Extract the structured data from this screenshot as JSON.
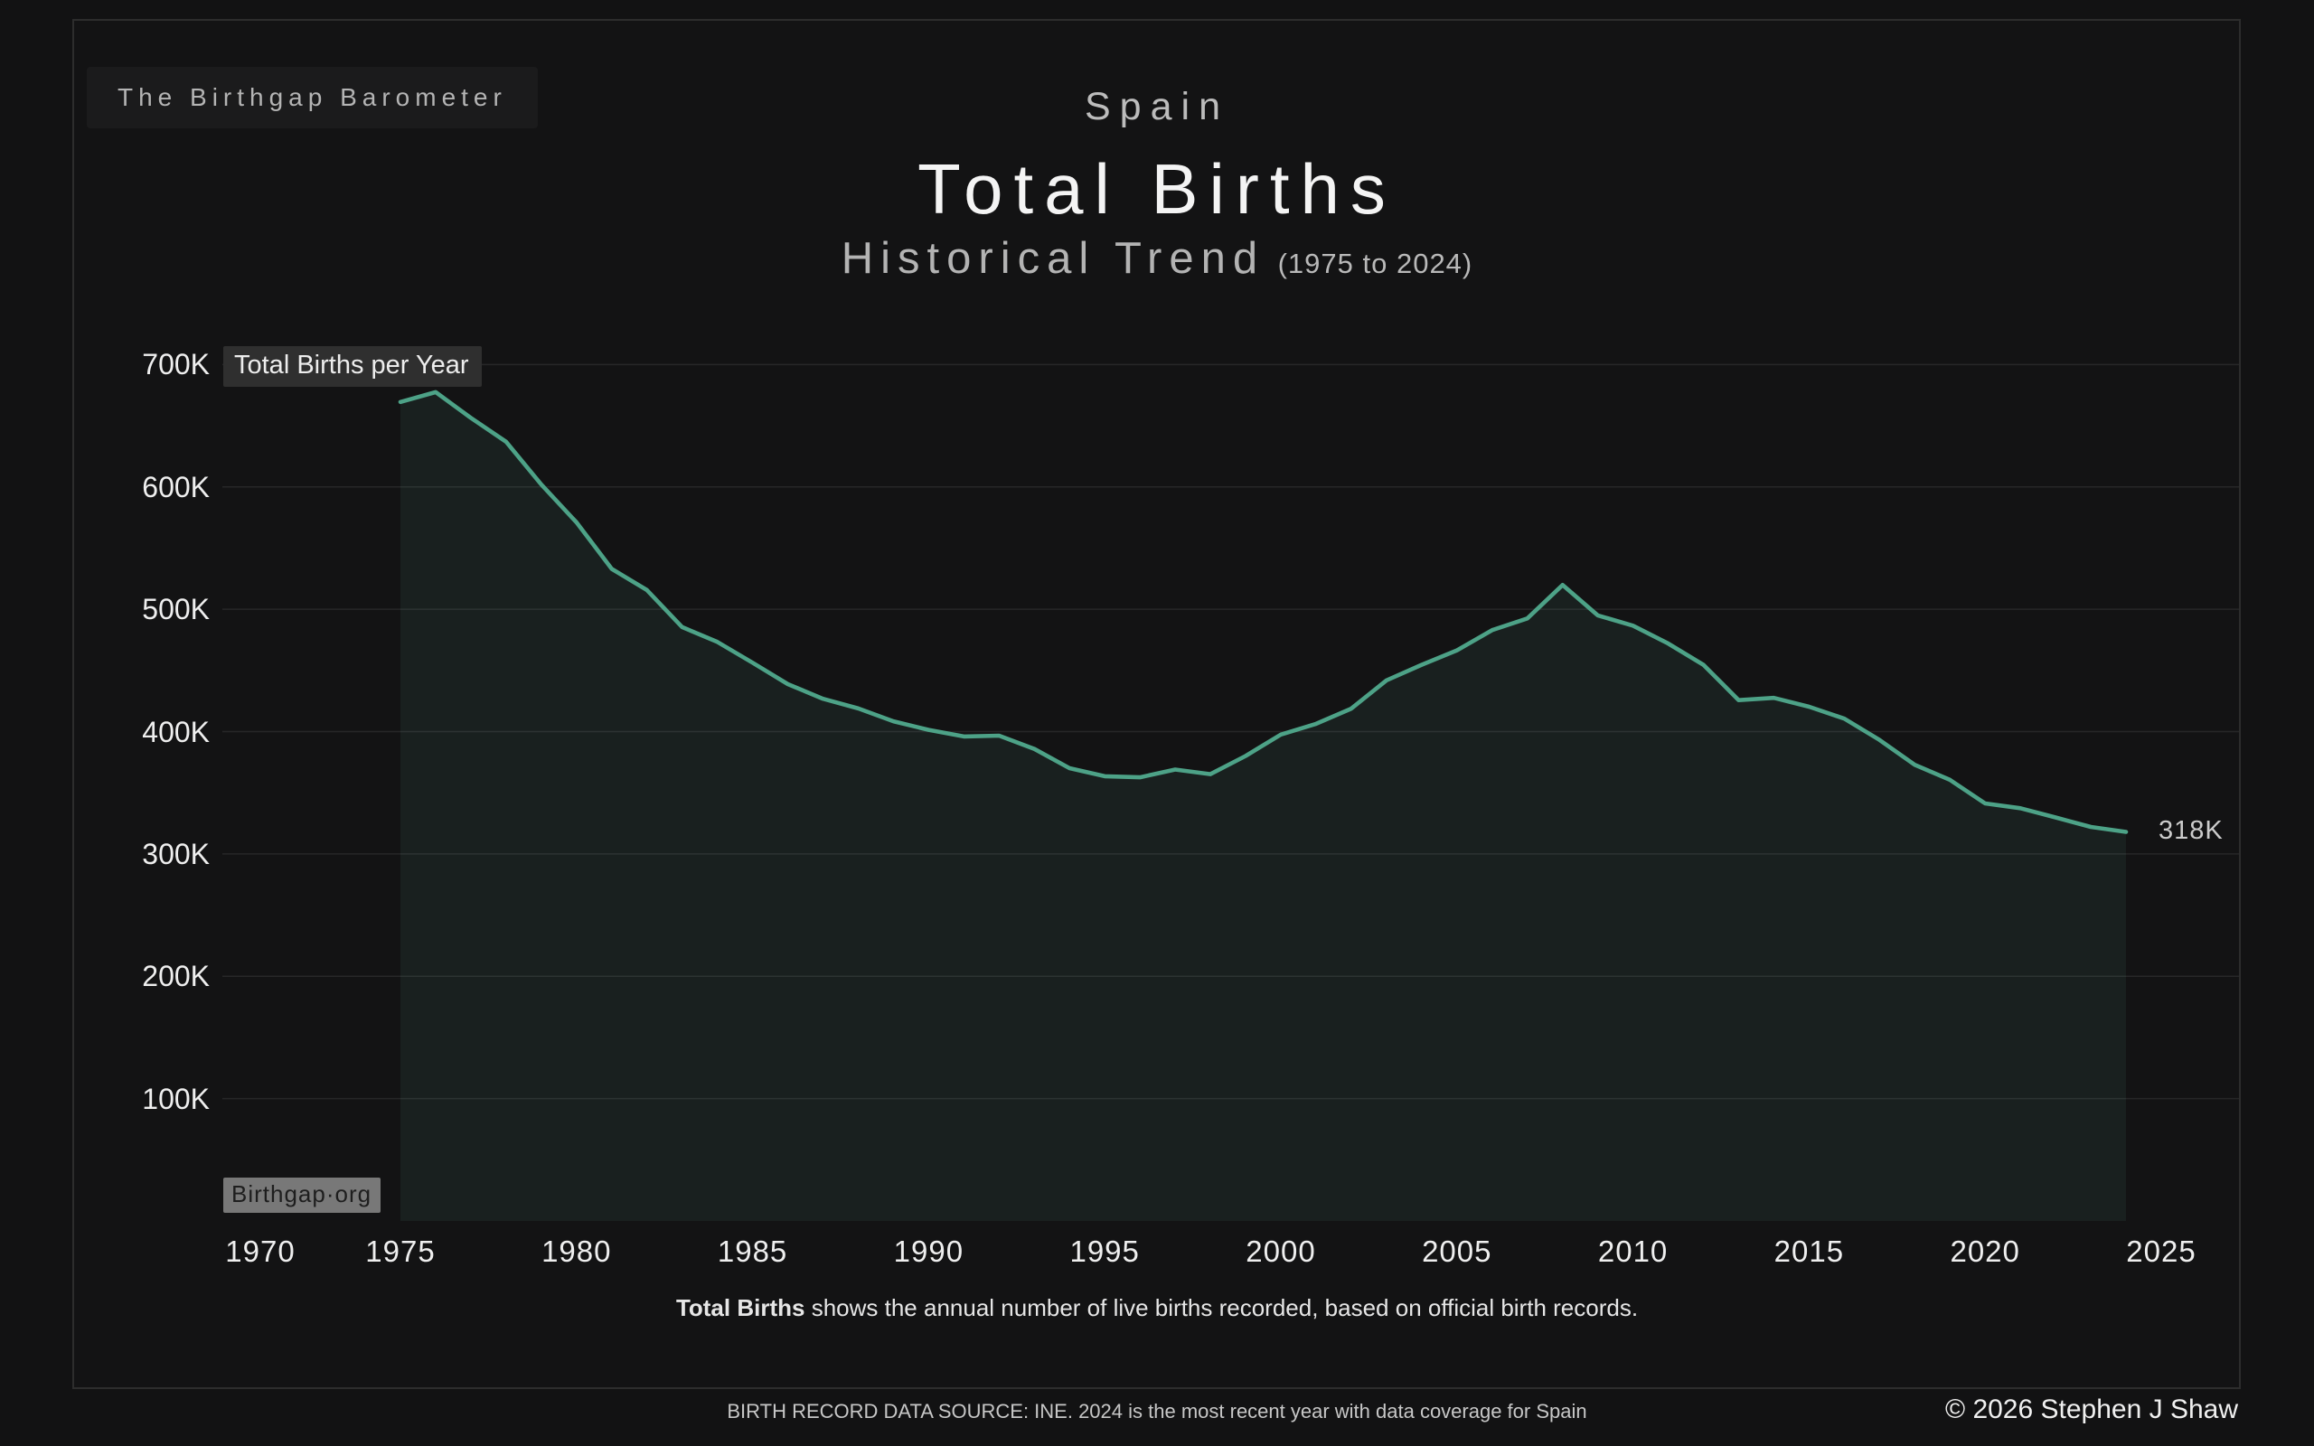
{
  "brand": {
    "label": "The Birthgap Barometer"
  },
  "header": {
    "country": "Spain",
    "title": "Total Births",
    "subtitle": "Historical Trend",
    "subtitle_range": "(1975 to 2024)"
  },
  "chart": {
    "series_badge": "Total Births per Year",
    "watermark": "Birthgap·org",
    "end_label": "318K",
    "colors": {
      "line": "#4da287",
      "fill": "rgba(86,170,140,0.09)",
      "grid": "rgba(255,255,255,0.085)"
    }
  },
  "chart_data": {
    "type": "area",
    "title": "Spain — Total Births — Historical Trend (1975 to 2024)",
    "xlabel": "",
    "ylabel": "Total Births per Year",
    "units": "thousands of births",
    "grid": "horizontal",
    "ylim": [
      0,
      700
    ],
    "x_ticks": [
      1970,
      1975,
      1980,
      1985,
      1990,
      1995,
      2000,
      2005,
      2010,
      2015,
      2020,
      2025
    ],
    "y_ticks": [
      {
        "value": 700,
        "label": "700K"
      },
      {
        "value": 600,
        "label": "600K"
      },
      {
        "value": 500,
        "label": "500K"
      },
      {
        "value": 400,
        "label": "400K"
      },
      {
        "value": 300,
        "label": "300K"
      },
      {
        "value": 200,
        "label": "200K"
      },
      {
        "value": 100,
        "label": "100K"
      }
    ],
    "x": [
      1975,
      1976,
      1977,
      1978,
      1979,
      1980,
      1981,
      1982,
      1983,
      1984,
      1985,
      1986,
      1987,
      1988,
      1989,
      1990,
      1991,
      1992,
      1993,
      1994,
      1995,
      1996,
      1997,
      1998,
      1999,
      2000,
      2001,
      2002,
      2003,
      2004,
      2005,
      2006,
      2007,
      2008,
      2009,
      2010,
      2011,
      2012,
      2013,
      2014,
      2015,
      2016,
      2017,
      2018,
      2019,
      2020,
      2021,
      2022,
      2023,
      2024
    ],
    "values_thousands": [
      669.4,
      677.5,
      656.4,
      636.9,
      602.0,
      571.0,
      533.0,
      515.7,
      485.4,
      473.3,
      456.3,
      438.8,
      426.8,
      418.9,
      408.4,
      401.4,
      396.0,
      396.7,
      385.8,
      370.1,
      363.5,
      362.6,
      369.0,
      365.2,
      380.1,
      397.6,
      406.4,
      418.8,
      441.9,
      454.6,
      466.4,
      483.0,
      492.5,
      519.8,
      495.0,
      486.6,
      472.0,
      454.6,
      425.7,
      427.6,
      420.3,
      410.6,
      393.2,
      372.8,
      360.6,
      341.3,
      337.4,
      329.8,
      322.1,
      318.0
    ],
    "annotation_last_value": "318K",
    "legend_position": "none"
  },
  "caption": {
    "bold": "Total Births",
    "rest": " shows the annual number of live births recorded, based on official birth records."
  },
  "footer": {
    "source": "BIRTH RECORD DATA SOURCE: INE. 2024 is the most recent year with data coverage for Spain",
    "copyright": "© 2026 Stephen J Shaw"
  }
}
